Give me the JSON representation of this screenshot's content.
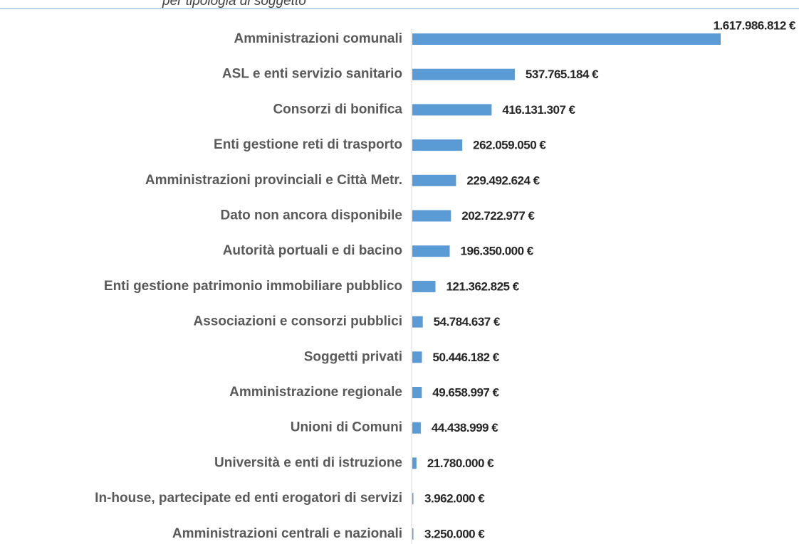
{
  "chart_data": {
    "type": "bar",
    "orientation": "horizontal",
    "title": "per tipologia di soggetto",
    "categories": [
      "Amministrazioni comunali",
      "ASL e enti servizio sanitario",
      "Consorzi di bonifica",
      "Enti gestione reti di trasporto",
      "Amministrazioni provinciali e Città Metr.",
      "Dato non ancora disponibile",
      "Autorità portuali e di bacino",
      "Enti gestione patrimonio immobiliare pubblico",
      "Associazioni e consorzi pubblici",
      "Soggetti privati",
      "Amministrazione regionale",
      "Unioni di Comuni",
      "Università e enti di istruzione",
      "In-house, partecipate ed enti erogatori di servizi",
      "Amministrazioni centrali e nazionali"
    ],
    "values": [
      1617986812,
      537765184,
      416131307,
      262059050,
      229492624,
      202722977,
      196350000,
      121362825,
      54784637,
      50446182,
      49658997,
      44438999,
      21780000,
      3962000,
      3250000
    ],
    "value_labels": [
      "1.617.986.812 €",
      "537.765.184 €",
      "416.131.307 €",
      "262.059.050 €",
      "229.492.624 €",
      "202.722.977 €",
      "196.350.000 €",
      "121.362.825 €",
      "54.784.637 €",
      "50.446.182 €",
      "49.658.997 €",
      "44.438.999 €",
      "21.780.000 €",
      "3.962.000 €",
      "3.250.000 €"
    ],
    "color": "#5b9bd5"
  }
}
